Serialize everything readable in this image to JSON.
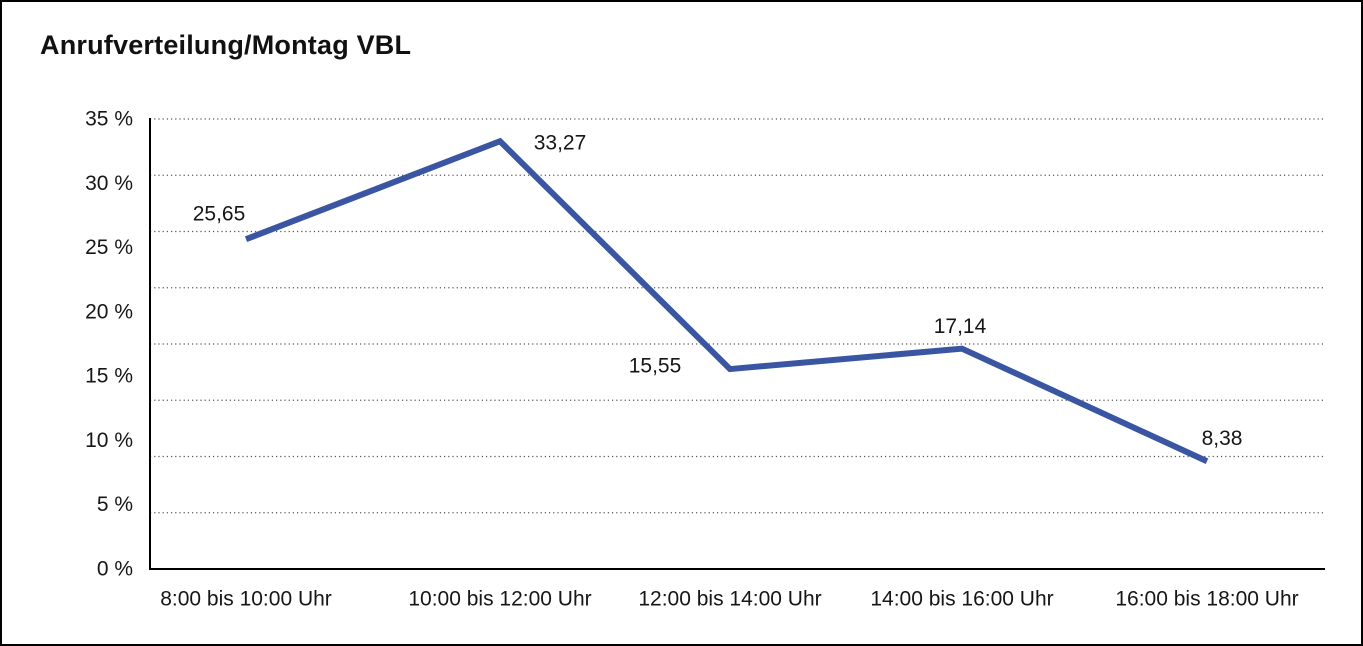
{
  "chart_data": {
    "type": "line",
    "title": "Anrufverteilung/Montag VBL",
    "categories": [
      "8:00 bis 10:00 Uhr",
      "10:00 bis 12:00 Uhr",
      "12:00 bis 14:00 Uhr",
      "14:00 bis 16:00 Uhr",
      "16:00 bis 18:00 Uhr"
    ],
    "values": [
      25.65,
      33.27,
      15.55,
      17.14,
      8.38
    ],
    "value_labels": [
      "25,65",
      "33,27",
      "15,55",
      "17,14",
      "8,38"
    ],
    "xlabel": "",
    "ylabel": "",
    "ylim": [
      0,
      35
    ],
    "y_ticks": [
      {
        "value": 35,
        "label": "35 %"
      },
      {
        "value": 30,
        "label": "30 %"
      },
      {
        "value": 25,
        "label": "25 %"
      },
      {
        "value": 20,
        "label": "20 %"
      },
      {
        "value": 15,
        "label": "15 %"
      },
      {
        "value": 10,
        "label": "10 %"
      },
      {
        "value": 5,
        "label": "5 %"
      },
      {
        "value": 0,
        "label": "0 %"
      }
    ],
    "grid": {
      "horizontal": "dotted",
      "divisions": 8,
      "vertical": "none"
    },
    "legend": "none",
    "line_color": "#3A56A3",
    "grid_color": "#555555",
    "axis_color": "#000000",
    "text_color": "#161616",
    "background_color": "#FFFFFF",
    "frame_color": "#000000"
  }
}
